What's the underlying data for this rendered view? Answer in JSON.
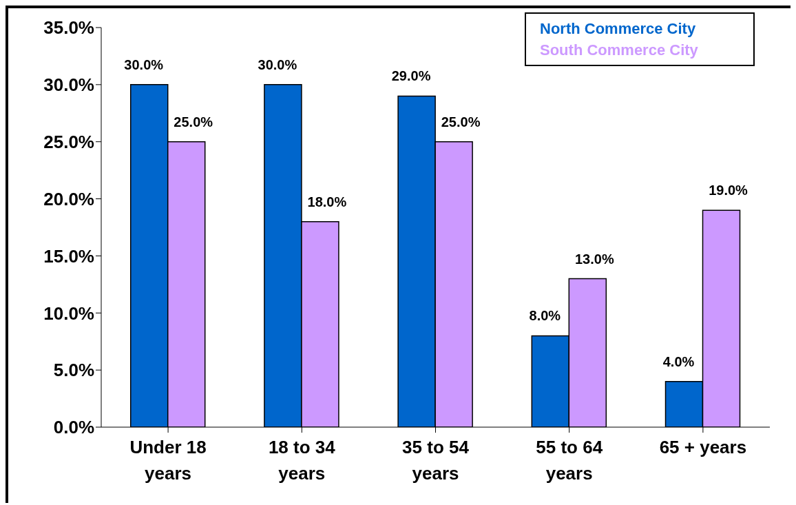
{
  "chart_data": {
    "type": "bar",
    "categories": [
      "Under 18 years",
      "18 to 34 years",
      "35 to 54 years",
      "55 to 64 years",
      "65 + years"
    ],
    "series": [
      {
        "name": "North Commerce City",
        "color": "#0066cc",
        "values": [
          30,
          30,
          29,
          8,
          4
        ],
        "value_labels": [
          "30.0%",
          "30.0%",
          "29.0%",
          "8.0%",
          "4.0%"
        ]
      },
      {
        "name": "South Commerce City",
        "color": "#cc99ff",
        "values": [
          25,
          18,
          25,
          13,
          19
        ],
        "value_labels": [
          "25.0%",
          "18.0%",
          "25.0%",
          "13.0%",
          "19.0%"
        ]
      }
    ],
    "ylim": [
      0,
      35
    ],
    "yticks": [
      {
        "value": 0,
        "label": "0.0%"
      },
      {
        "value": 5,
        "label": "5.0%"
      },
      {
        "value": 10,
        "label": "10.0%"
      },
      {
        "value": 15,
        "label": "15.0%"
      },
      {
        "value": 20,
        "label": "20.0%"
      },
      {
        "value": 25,
        "label": "25.0%"
      },
      {
        "value": 30,
        "label": "30.0%"
      },
      {
        "value": 35,
        "label": "35.0%"
      }
    ],
    "grid": false,
    "legend": "top right"
  }
}
